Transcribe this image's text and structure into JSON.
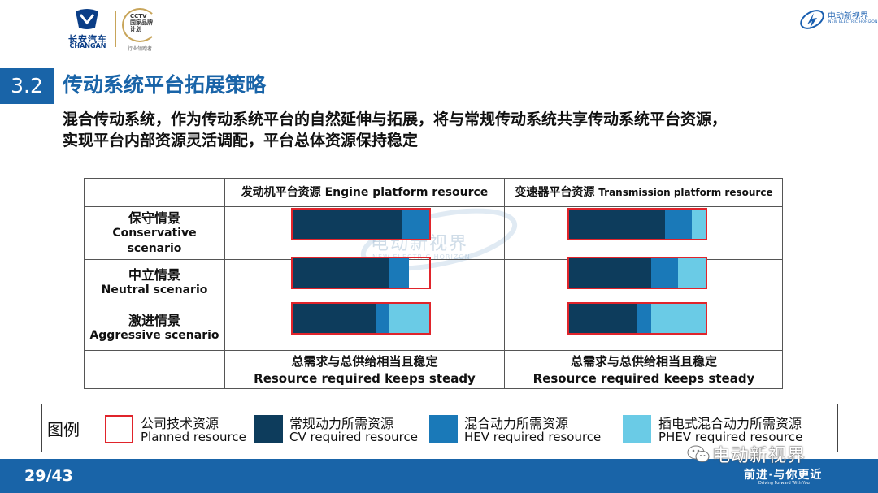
{
  "header": {
    "logo_left_cn": "长安汽车",
    "logo_left_en": "CHANGAN",
    "logo_plan_text": "CCTV\n国家品牌\n计划",
    "logo_plan_sub": "行业领跑者",
    "logo_right_cn": "电动新视界",
    "logo_right_en": "NEW ELECTRIC HORIZON"
  },
  "section": {
    "number": "3.2",
    "title": "传动系统平台拓展策略",
    "subtitle_line1": "混合传动系统，作为传动系统平台的自然延伸与拓展，将与常规传动系统共享传动系统平台资源，",
    "subtitle_line2": "实现平台内部资源灵活调配，平台总体资源保持稳定"
  },
  "table": {
    "col_engine_cn": "发动机平台资源",
    "col_engine_en": "Engine platform resource",
    "col_trans_cn": "变速器平台资源",
    "col_trans_en": "Transmission platform resource",
    "rows": [
      {
        "cn": "保守情景",
        "en1": "Conservative",
        "en2": "scenario"
      },
      {
        "cn": "中立情景",
        "en1": "Neutral scenario",
        "en2": ""
      },
      {
        "cn": "激进情景",
        "en1": "Aggressive scenario",
        "en2": ""
      }
    ],
    "footer_cn": "总需求与总供给相当且稳定",
    "footer_en": "Resource required keeps steady"
  },
  "chart_data": {
    "type": "bar",
    "note_colors": {
      "cv": "#0d3c5c",
      "hev": "#1a79b8",
      "phev": "#6acbe6",
      "frame": "#e0242b"
    },
    "engine": [
      {
        "scenario": "保守情景",
        "cv": 0.8,
        "hev": 0.2,
        "phev": 0.0
      },
      {
        "scenario": "中立情景",
        "cv": 0.71,
        "hev": 0.14,
        "phev": 0.0
      },
      {
        "scenario": "激进情景",
        "cv": 0.61,
        "hev": 0.1,
        "phev": 0.29
      }
    ],
    "transmission": [
      {
        "scenario": "保守情景",
        "cv": 0.7,
        "hev": 0.2,
        "phev": 0.1
      },
      {
        "scenario": "中立情景",
        "cv": 0.6,
        "hev": 0.2,
        "phev": 0.2
      },
      {
        "scenario": "激进情景",
        "cv": 0.5,
        "hev": 0.1,
        "phev": 0.4
      }
    ]
  },
  "legend": {
    "title": "图例",
    "items": [
      {
        "cn": "公司技术资源",
        "en": "Planned resource"
      },
      {
        "cn": "常规动力所需资源",
        "en": "CV required resource"
      },
      {
        "cn": "混合动力所需资源",
        "en": "HEV required resource"
      },
      {
        "cn": "插电式混合动力所需资源",
        "en": "PHEV required resource"
      }
    ]
  },
  "footer": {
    "page": "29/43",
    "slogan_cn": "前进·与你更近",
    "slogan_en": "Driving Forward With You",
    "wechat_label": "电动新视界"
  }
}
